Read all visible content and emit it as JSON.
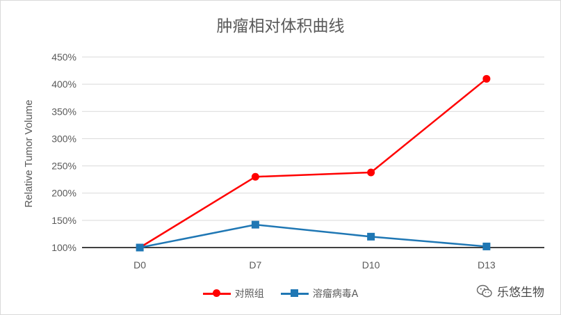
{
  "chart_data": {
    "type": "line",
    "title": "肿瘤相对体积曲线",
    "xlabel": "",
    "ylabel": "Relative Tumor Volume",
    "categories": [
      "D0",
      "D7",
      "D10",
      "D13"
    ],
    "ylim": [
      100,
      450
    ],
    "yticks": [
      "100%",
      "150%",
      "200%",
      "250%",
      "300%",
      "350%",
      "400%",
      "450%"
    ],
    "ytick_values": [
      100,
      150,
      200,
      250,
      300,
      350,
      400,
      450
    ],
    "grid": true,
    "legend_position": "bottom",
    "series": [
      {
        "name": "对照组",
        "values": [
          100,
          230,
          238,
          410
        ],
        "color": "#ff0000",
        "marker": "circle"
      },
      {
        "name": "溶瘤病毒A",
        "values": [
          100,
          142,
          120,
          102
        ],
        "color": "#1f77b4",
        "marker": "square"
      }
    ]
  },
  "watermark": {
    "text": "乐悠生物",
    "icon": "wechat-icon"
  }
}
